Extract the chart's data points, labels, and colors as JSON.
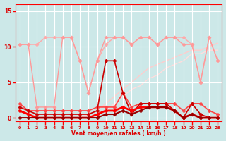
{
  "x": [
    0,
    1,
    2,
    3,
    4,
    5,
    6,
    7,
    8,
    9,
    10,
    11,
    12,
    13,
    14,
    15,
    16,
    17,
    18,
    19,
    20,
    21,
    22,
    23
  ],
  "series": [
    {
      "values": [
        10.3,
        10.3,
        10.3,
        11.3,
        11.3,
        11.3,
        11.3,
        8.0,
        3.5,
        8.0,
        10.3,
        11.3,
        11.3,
        10.3,
        11.3,
        11.3,
        10.3,
        11.3,
        11.3,
        11.3,
        10.3,
        5.0,
        11.3,
        8.0
      ],
      "color": "#ffaaaa",
      "linewidth": 1.0,
      "marker": "D",
      "markersize": 2.5,
      "zorder": 2
    },
    {
      "values": [
        10.3,
        10.3,
        1.5,
        1.5,
        1.5,
        11.3,
        11.3,
        8.0,
        3.5,
        8.0,
        11.3,
        11.3,
        11.3,
        10.3,
        11.3,
        11.3,
        10.3,
        11.3,
        11.3,
        10.3,
        10.3,
        5.0,
        11.3,
        8.0
      ],
      "color": "#ff9999",
      "linewidth": 1.0,
      "marker": "D",
      "markersize": 2.5,
      "zorder": 3
    },
    {
      "values": [
        0.0,
        0.0,
        0.0,
        0.0,
        0.0,
        0.0,
        0.0,
        0.0,
        0.5,
        1.0,
        2.0,
        3.0,
        4.0,
        5.0,
        6.0,
        7.0,
        7.5,
        8.0,
        8.5,
        9.0,
        9.5,
        9.5,
        10.0,
        10.5
      ],
      "color": "#ffcccc",
      "linewidth": 1.0,
      "marker": null,
      "markersize": 0,
      "zorder": 1
    },
    {
      "values": [
        0.0,
        0.0,
        0.0,
        0.0,
        0.0,
        0.0,
        0.0,
        0.0,
        0.0,
        0.5,
        1.0,
        2.0,
        3.0,
        4.0,
        4.5,
        5.5,
        6.0,
        7.0,
        7.5,
        8.0,
        9.0,
        9.0,
        9.5,
        9.5
      ],
      "color": "#ffdddd",
      "linewidth": 1.0,
      "marker": null,
      "markersize": 0,
      "zorder": 1
    },
    {
      "values": [
        2.0,
        1.0,
        1.0,
        1.0,
        1.0,
        1.0,
        1.0,
        1.0,
        1.0,
        1.5,
        1.5,
        1.5,
        3.5,
        1.5,
        2.0,
        2.0,
        2.0,
        2.0,
        2.0,
        1.0,
        2.0,
        2.0,
        1.0,
        0.5
      ],
      "color": "#ff4444",
      "linewidth": 1.2,
      "marker": "D",
      "markersize": 2.5,
      "zorder": 4
    },
    {
      "values": [
        1.5,
        1.0,
        0.5,
        0.5,
        0.5,
        0.5,
        0.5,
        0.5,
        0.5,
        1.0,
        8.0,
        8.0,
        3.5,
        0.5,
        2.0,
        2.0,
        2.0,
        2.0,
        1.0,
        0.0,
        2.0,
        0.5,
        0.0,
        0.0
      ],
      "color": "#cc0000",
      "linewidth": 1.2,
      "marker": "D",
      "markersize": 2.5,
      "zorder": 4
    },
    {
      "values": [
        1.0,
        0.5,
        0.0,
        0.0,
        0.0,
        0.0,
        0.0,
        0.0,
        0.0,
        0.5,
        1.0,
        1.0,
        1.5,
        1.0,
        1.5,
        1.5,
        1.5,
        1.5,
        1.0,
        0.0,
        0.5,
        0.0,
        0.0,
        0.0
      ],
      "color": "#ff0000",
      "linewidth": 2.0,
      "marker": "D",
      "markersize": 2.5,
      "zorder": 5
    },
    {
      "values": [
        0.0,
        0.0,
        0.0,
        0.0,
        0.0,
        0.0,
        0.0,
        0.0,
        0.0,
        0.0,
        0.5,
        0.5,
        1.0,
        0.5,
        1.0,
        1.5,
        1.5,
        1.5,
        1.0,
        0.0,
        0.5,
        0.0,
        0.0,
        0.0
      ],
      "color": "#990000",
      "linewidth": 1.5,
      "marker": "D",
      "markersize": 2.5,
      "zorder": 5
    }
  ],
  "xlabel": "Vent moyen/en rafales ( km/h )",
  "yticks": [
    0,
    5,
    10,
    15
  ],
  "ylim": [
    -0.5,
    16.0
  ],
  "xlim": [
    -0.5,
    23.5
  ],
  "xticks": [
    0,
    1,
    2,
    3,
    4,
    5,
    6,
    7,
    8,
    9,
    10,
    11,
    12,
    13,
    14,
    15,
    16,
    17,
    18,
    19,
    20,
    21,
    22,
    23
  ],
  "background_color": "#cce8e8",
  "grid_color": "#ffffff",
  "tick_color": "#ff0000",
  "label_color": "#dd0000"
}
